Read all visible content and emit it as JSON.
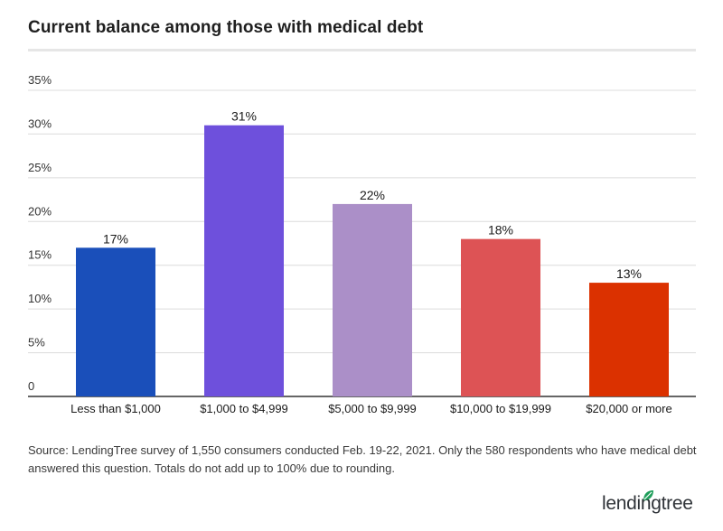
{
  "title": "Current balance among those with medical debt",
  "source": "Source: LendingTree survey of 1,550 consumers conducted Feb. 19-22, 2021. Only the 580 respondents who have medical debt answered this question. Totals do not add up to 100% due to rounding.",
  "logo_text": "lendingtree",
  "colors": {
    "brand_green": "#1e9e5a"
  },
  "chart_data": {
    "type": "bar",
    "categories": [
      "Less than $1,000",
      "$1,000 to $4,999",
      "$5,000 to $9,999",
      "$10,000 to $19,999",
      "$20,000 or more"
    ],
    "values": [
      17,
      31,
      22,
      18,
      13
    ],
    "value_labels": [
      "17%",
      "31%",
      "22%",
      "18%",
      "13%"
    ],
    "colors": [
      "#1a4fba",
      "#6e50dc",
      "#ab8fc8",
      "#dd5355",
      "#db3100"
    ],
    "ylim": [
      0,
      35
    ],
    "yticks": [
      0,
      5,
      10,
      15,
      20,
      25,
      30,
      35
    ],
    "ytick_labels": [
      "0",
      "5%",
      "10%",
      "15%",
      "20%",
      "25%",
      "30%",
      "35%"
    ],
    "grid": true,
    "xlabel": "",
    "ylabel": ""
  }
}
